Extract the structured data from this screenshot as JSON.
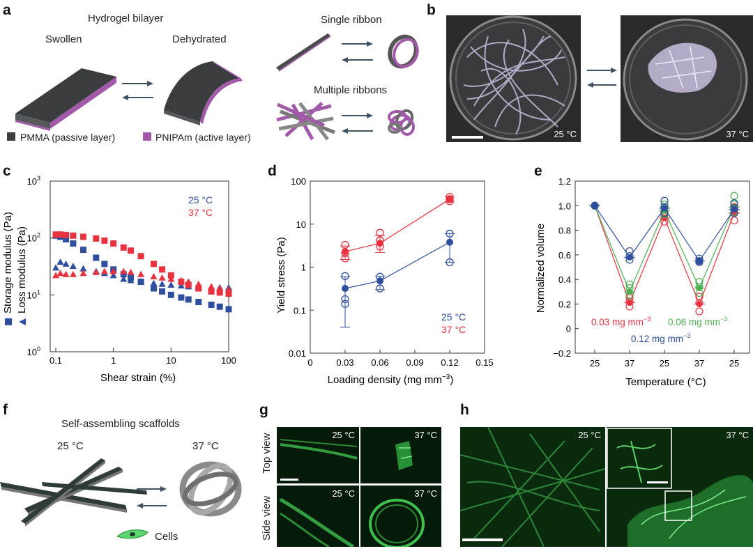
{
  "panels": {
    "a": {
      "label": "a",
      "bilayer_title": "Hydrogel bilayer",
      "swollen": "Swollen",
      "dehydrated": "Dehydrated",
      "single": "Single ribbon",
      "multiple": "Multiple ribbons",
      "legend_pmma": "PMMA (passive layer)",
      "legend_pnipam": "PNIPAm (active layer)",
      "colors": {
        "pmma": "#3a3d3e",
        "pnipam": "#a05aa8"
      }
    },
    "b": {
      "label": "b",
      "t1": "25 °C",
      "t2": "37 °C"
    },
    "c": {
      "label": "c",
      "xlabel": "Shear strain (%)",
      "ylabel1": "Storage modulus (Pa)",
      "ylabel2": "Loss modulus (Pa)",
      "leg25": "25 °C",
      "leg37": "37 °C"
    },
    "d": {
      "label": "d",
      "xlabel": "Loading density (mg mm",
      "xsup": "−3",
      "xclose": ")",
      "ylabel": "Yield stress (Pa)",
      "leg25": "25 °C",
      "leg37": "37 °C"
    },
    "e": {
      "label": "e",
      "xlabel": "Temperature (°C)",
      "ylabel": "Normalized volume",
      "l003": "0.03 mg mm",
      "l006": "0.06 mg mm",
      "l012": "0.12 mg mm",
      "sup": "−3"
    },
    "f": {
      "label": "f",
      "title": "Self-assembling scaffolds",
      "t25": "25 °C",
      "t37": "37 °C",
      "cells": "Cells"
    },
    "g": {
      "label": "g",
      "top": "Top view",
      "side": "Side view",
      "t25a": "25 °C",
      "t37a": "37 °C",
      "t25b": "25 °C",
      "t37b": "37 °C"
    },
    "h": {
      "label": "h",
      "t25": "25 °C",
      "t37": "37 °C"
    }
  },
  "chart_data": [
    {
      "panel": "c",
      "type": "scatter",
      "xlabel": "Shear strain (%)",
      "ylabel": "Storage modulus (Pa) / Loss modulus (Pa)",
      "xscale": "log",
      "yscale": "log",
      "xlim": [
        0.08,
        100
      ],
      "ylim": [
        1,
        1000
      ],
      "xticks": [
        {
          "v": 0.1,
          "l": "0.1"
        },
        {
          "v": 1,
          "l": "1"
        },
        {
          "v": 10,
          "l": "10"
        },
        {
          "v": 100,
          "l": "100"
        }
      ],
      "yticks": [
        {
          "v": 1,
          "l": "10",
          "s": "0"
        },
        {
          "v": 10,
          "l": "10",
          "s": "1"
        },
        {
          "v": 100,
          "l": "10",
          "s": "2"
        },
        {
          "v": 1000,
          "l": "10",
          "s": "3"
        }
      ],
      "colors": {
        "25 °C": "#2f4f9e",
        "37 °C": "#e8323f"
      },
      "series": [
        {
          "name": "25 °C",
          "kind": "storage",
          "points": [
            [
              0.1,
              110
            ],
            [
              0.12,
              105
            ],
            [
              0.15,
              95
            ],
            [
              0.2,
              80
            ],
            [
              0.3,
              62
            ],
            [
              0.5,
              45
            ],
            [
              0.7,
              35
            ],
            [
              1,
              28
            ],
            [
              1.5,
              23
            ],
            [
              2,
              20
            ],
            [
              3,
              17
            ],
            [
              5,
              13
            ],
            [
              7,
              11.5
            ],
            [
              10,
              10
            ],
            [
              15,
              9
            ],
            [
              20,
              8.3
            ],
            [
              30,
              7.5
            ],
            [
              50,
              6.7
            ],
            [
              70,
              6.2
            ],
            [
              100,
              5.6
            ]
          ]
        },
        {
          "name": "25 °C",
          "kind": "loss",
          "points": [
            [
              0.1,
              30
            ],
            [
              0.12,
              38
            ],
            [
              0.15,
              35
            ],
            [
              0.2,
              32
            ],
            [
              0.3,
              29
            ],
            [
              0.5,
              26
            ],
            [
              0.7,
              24
            ],
            [
              1,
              22
            ],
            [
              1.5,
              19
            ],
            [
              2,
              18
            ],
            [
              3,
              17
            ],
            [
              5,
              16
            ],
            [
              7,
              15.5
            ],
            [
              10,
              15
            ],
            [
              15,
              14.5
            ],
            [
              20,
              14
            ],
            [
              30,
              13.8
            ],
            [
              50,
              13.6
            ],
            [
              70,
              13.5
            ],
            [
              100,
              13.5
            ]
          ]
        },
        {
          "name": "37 °C",
          "kind": "storage",
          "points": [
            [
              0.1,
              115
            ],
            [
              0.12,
              115
            ],
            [
              0.15,
              113
            ],
            [
              0.2,
              110
            ],
            [
              0.3,
              105
            ],
            [
              0.5,
              98
            ],
            [
              0.7,
              90
            ],
            [
              1,
              80
            ],
            [
              1.5,
              68
            ],
            [
              2,
              60
            ],
            [
              3,
              48
            ],
            [
              5,
              35
            ],
            [
              7,
              28
            ],
            [
              10,
              22
            ],
            [
              15,
              17
            ],
            [
              20,
              15
            ],
            [
              30,
              13
            ],
            [
              50,
              11.5
            ],
            [
              70,
              11
            ],
            [
              100,
              10.5
            ]
          ]
        },
        {
          "name": "37 °C",
          "kind": "loss",
          "points": [
            [
              0.1,
              22
            ],
            [
              0.12,
              24
            ],
            [
              0.15,
              23
            ],
            [
              0.2,
              23
            ],
            [
              0.3,
              24
            ],
            [
              0.5,
              25
            ],
            [
              0.7,
              26
            ],
            [
              1,
              26
            ],
            [
              1.5,
              26
            ],
            [
              2,
              25
            ],
            [
              3,
              23
            ],
            [
              5,
              21
            ],
            [
              7,
              20
            ],
            [
              10,
              19
            ],
            [
              15,
              18
            ],
            [
              20,
              17
            ],
            [
              30,
              15.5
            ],
            [
              50,
              14
            ],
            [
              70,
              13
            ],
            [
              100,
              12.5
            ]
          ]
        }
      ]
    },
    {
      "panel": "d",
      "type": "scatter",
      "xlabel": "Loading density (mg mm−3)",
      "ylabel": "Yield stress (Pa)",
      "yscale": "log",
      "xlim": [
        0,
        0.15
      ],
      "ylim": [
        0.01,
        100
      ],
      "xticks": [
        {
          "v": 0,
          "l": "0"
        },
        {
          "v": 0.03,
          "l": "0.03"
        },
        {
          "v": 0.06,
          "l": "0.06"
        },
        {
          "v": 0.09,
          "l": "0.09"
        },
        {
          "v": 0.12,
          "l": "0.12"
        },
        {
          "v": 0.15,
          "l": "0.15"
        }
      ],
      "yticks": [
        {
          "v": 0.01,
          "l": "0.01"
        },
        {
          "v": 0.1,
          "l": "0.1"
        },
        {
          "v": 1,
          "l": "1"
        },
        {
          "v": 10,
          "l": "10"
        },
        {
          "v": 100,
          "l": "100"
        }
      ],
      "colors": {
        "25 °C": "#2f4f9e",
        "37 °C": "#e8323f"
      },
      "series": [
        {
          "name": "25 °C",
          "mean": [
            [
              0.03,
              0.32
            ],
            [
              0.06,
              0.48
            ],
            [
              0.12,
              3.8
            ]
          ],
          "err": [
            [
              0.04,
              0.6
            ],
            [
              0.3,
              0.62
            ],
            [
              1.3,
              6.0
            ]
          ],
          "raw": [
            [
              0.03,
              0.62
            ],
            [
              0.03,
              0.18
            ],
            [
              0.03,
              0.14
            ],
            [
              0.06,
              0.6
            ],
            [
              0.06,
              0.32
            ],
            [
              0.12,
              6.0
            ],
            [
              0.12,
              1.3
            ]
          ]
        },
        {
          "name": "37 °C",
          "mean": [
            [
              0.03,
              2.3
            ],
            [
              0.06,
              3.6
            ],
            [
              0.12,
              38
            ]
          ],
          "err": [
            [
              1.5,
              3.1
            ],
            [
              2.2,
              5.5
            ],
            [
              33,
              44
            ]
          ],
          "raw": [
            [
              0.03,
              3.3
            ],
            [
              0.03,
              2.1
            ],
            [
              0.03,
              1.6
            ],
            [
              0.06,
              6.3
            ],
            [
              0.06,
              4.2
            ],
            [
              0.06,
              3.0
            ],
            [
              0.12,
              43
            ],
            [
              0.12,
              38
            ],
            [
              0.12,
              34
            ]
          ]
        }
      ]
    },
    {
      "panel": "e",
      "type": "line",
      "xlabel": "Temperature (°C)",
      "ylabel": "Normalized volume",
      "categories": [
        "25",
        "37",
        "25",
        "37",
        "25"
      ],
      "ylim": [
        -0.2,
        1.2
      ],
      "yticks": [
        -0.2,
        0,
        0.2,
        0.4,
        0.6,
        0.8,
        1.0,
        1.2
      ],
      "series": [
        {
          "name": "0.03 mg mm−3",
          "color": "#e8323f",
          "values": [
            1.0,
            0.21,
            0.9,
            0.2,
            0.94
          ],
          "raw": [
            [
              1.0
            ],
            [
              0.18,
              0.22,
              0.25
            ],
            [
              0.87,
              0.92,
              0.95
            ],
            [
              0.14,
              0.21,
              0.26
            ],
            [
              0.88,
              0.95,
              0.99
            ]
          ]
        },
        {
          "name": "0.06 mg mm−3",
          "color": "#4caf50",
          "values": [
            1.0,
            0.3,
            0.96,
            0.33,
            0.99
          ],
          "raw": [
            [
              1.0
            ],
            [
              0.27,
              0.33,
              0.36
            ],
            [
              0.93,
              0.98,
              1.01
            ],
            [
              0.29,
              0.34,
              0.38
            ],
            [
              0.95,
              1.01,
              1.08
            ]
          ]
        },
        {
          "name": "0.12 mg mm−3",
          "color": "#2f4f9e",
          "values": [
            1.0,
            0.58,
            0.98,
            0.55,
            0.97
          ],
          "raw": [
            [
              1.0
            ],
            [
              0.56,
              0.59,
              0.63
            ],
            [
              0.94,
              0.99,
              1.04
            ],
            [
              0.54,
              0.55,
              0.57
            ],
            [
              0.94,
              0.98,
              1.02
            ]
          ]
        }
      ]
    }
  ]
}
